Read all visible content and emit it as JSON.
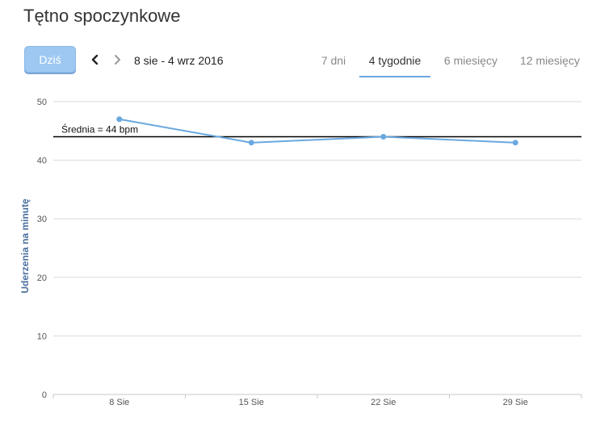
{
  "page": {
    "title": "Tętno spoczynkowe"
  },
  "toolbar": {
    "today_label": "Dziś",
    "prev_icon": "chevron-left-icon",
    "next_icon": "chevron-right-icon",
    "date_range": "8 sie - 4 wrz 2016"
  },
  "tabs": [
    {
      "label": "7 dni",
      "active": false
    },
    {
      "label": "4 tygodnie",
      "active": true
    },
    {
      "label": "6 miesięcy",
      "active": false
    },
    {
      "label": "12 miesięcy",
      "active": false
    }
  ],
  "colors": {
    "accent": "#6aa8e0",
    "line": "#6aa8e0",
    "average": "#000000",
    "grid": "#d9d9d9"
  },
  "chart_data": {
    "type": "line",
    "ylabel": "Uderzenia na minutę",
    "xlabel": "",
    "ylim": [
      0,
      50
    ],
    "yticks": [
      0,
      10,
      20,
      30,
      40,
      50
    ],
    "categories": [
      "8 Sie",
      "15 Sie",
      "22 Sie",
      "29 Sie"
    ],
    "series": [
      {
        "values": [
          47,
          43,
          44,
          43
        ]
      }
    ],
    "average": {
      "value": 44,
      "label": "Średnia = 44 bpm"
    },
    "grid": true
  }
}
